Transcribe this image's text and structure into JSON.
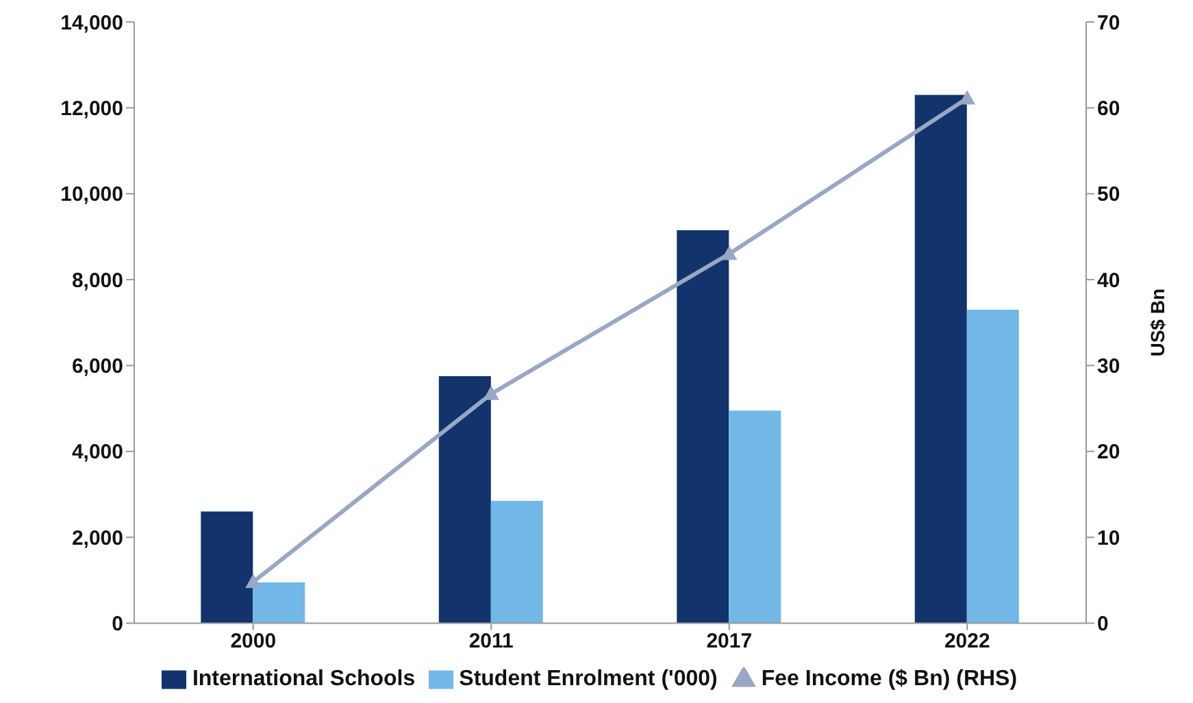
{
  "chart_data": {
    "type": "bar",
    "categories": [
      "2000",
      "2011",
      "2017",
      "2022"
    ],
    "series": [
      {
        "name": "International Schools",
        "color": "#12336b",
        "values": [
          2600,
          5750,
          9150,
          12300
        ]
      },
      {
        "name": "Student Enrolment ('000)",
        "color": "#71b8e8",
        "values": [
          950,
          2850,
          4950,
          7300
        ]
      },
      {
        "name": "Fee Income ($ Bn) (RHS)",
        "color": "#98a8c4",
        "type": "line",
        "axis": "y2",
        "marker": "triangle",
        "values": [
          4.8,
          26.7,
          43,
          61.1
        ]
      }
    ],
    "ylim": [
      0,
      14000
    ],
    "yticks": [
      0,
      {
        "value": 2000,
        "label": "2,000"
      },
      {
        "value": 4000,
        "label": "4,000"
      },
      {
        "value": 6000,
        "label": "6,000"
      },
      {
        "value": 8000,
        "label": "8,000"
      },
      {
        "value": 10000,
        "label": "10,000"
      },
      {
        "value": 12000,
        "label": "12,000"
      },
      {
        "value": 14000,
        "label": "14,000"
      }
    ],
    "y2lim": [
      0,
      70
    ],
    "y2ticks": [
      0,
      10,
      20,
      30,
      40,
      50,
      60,
      70
    ],
    "y2label": "US$ Bn",
    "legend": "bottom"
  }
}
